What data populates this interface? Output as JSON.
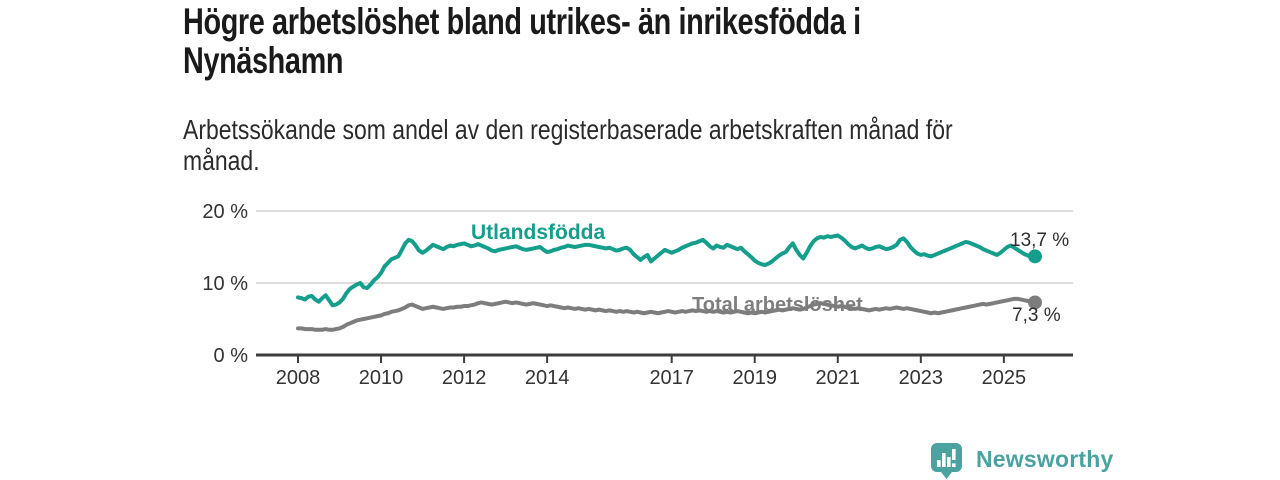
{
  "header": {
    "title_line1": "Högre arbetslöshet bland utrikes- än inrikesfödda i",
    "title_line2": "Nynäshamn",
    "subtitle_line1": "Arbetssökande som andel av den registerbaserade arbetskraften månad för",
    "subtitle_line2": "månad."
  },
  "footer": {
    "brand_name": "Newsworthy",
    "brand_color": "#4aa2a1",
    "brand_icon": "bar-chart-speech-bubble-icon"
  },
  "chart_data": {
    "type": "line",
    "title": "Högre arbetslöshet bland utrikes- än inrikesfödda i Nynäshamn",
    "subtitle": "Arbetssökande som andel av den registerbaserade arbetskraften månad för månad.",
    "frequency": "monthly",
    "x_start": "2008-01",
    "x_end": "2025-10",
    "ylim": [
      0,
      20
    ],
    "grid": "horizontal-only",
    "x_tick_years": [
      2008,
      2010,
      2012,
      2014,
      2017,
      2019,
      2021,
      2023,
      2025
    ],
    "y_ticks": [
      {
        "label": "0 %",
        "value": 0
      },
      {
        "label": "10 %",
        "value": 10
      },
      {
        "label": "20 %",
        "value": 20
      }
    ],
    "axis_color": "#3d3d3d",
    "gridline_color": "#dcdcdc",
    "tick_label_color": "#333333",
    "series": [
      {
        "id": "utlandsfodda",
        "name": "Utlandsfödda",
        "color": "#149e8b",
        "end_label": "13,7 %",
        "end_value": 13.7,
        "values": [
          8.0,
          7.9,
          7.7,
          8.1,
          8.2,
          7.7,
          7.4,
          7.9,
          8.3,
          7.6,
          6.9,
          7.0,
          7.3,
          7.8,
          8.6,
          9.2,
          9.5,
          9.8,
          10.0,
          9.4,
          9.3,
          9.8,
          10.4,
          10.8,
          11.4,
          12.3,
          12.8,
          13.3,
          13.5,
          13.7,
          14.6,
          15.5,
          16.0,
          15.8,
          15.2,
          14.5,
          14.2,
          14.5,
          14.9,
          15.3,
          15.1,
          14.9,
          14.7,
          15.0,
          15.2,
          15.1,
          15.3,
          15.4,
          15.5,
          15.3,
          15.1,
          15.2,
          15.4,
          15.2,
          15.0,
          14.8,
          14.5,
          14.4,
          14.6,
          14.7,
          14.8,
          14.9,
          15.0,
          15.1,
          14.9,
          14.7,
          14.6,
          14.7,
          14.8,
          14.9,
          15.0,
          14.6,
          14.3,
          14.4,
          14.6,
          14.7,
          14.9,
          15.0,
          15.2,
          15.1,
          15.0,
          15.1,
          15.2,
          15.3,
          15.3,
          15.2,
          15.1,
          15.0,
          14.9,
          14.8,
          14.9,
          14.7,
          14.5,
          14.6,
          14.8,
          14.9,
          14.6,
          14.0,
          13.6,
          13.2,
          13.6,
          13.9,
          13.0,
          13.4,
          13.8,
          14.2,
          14.6,
          14.4,
          14.2,
          14.4,
          14.6,
          14.9,
          15.1,
          15.3,
          15.5,
          15.6,
          15.8,
          16.0,
          15.6,
          15.1,
          14.8,
          15.2,
          15.0,
          14.9,
          15.3,
          15.1,
          14.9,
          14.7,
          14.9,
          14.4,
          14.0,
          13.6,
          13.1,
          12.8,
          12.6,
          12.5,
          12.7,
          13.0,
          13.4,
          13.8,
          14.1,
          14.3,
          15.0,
          15.5,
          14.6,
          13.9,
          13.4,
          14.2,
          15.1,
          15.8,
          16.2,
          16.4,
          16.3,
          16.5,
          16.4,
          16.5,
          16.6,
          16.3,
          15.9,
          15.4,
          15.0,
          14.8,
          15.0,
          15.2,
          14.9,
          14.7,
          14.8,
          15.0,
          15.1,
          14.9,
          14.7,
          14.8,
          15.0,
          15.3,
          16.0,
          16.2,
          15.7,
          15.0,
          14.5,
          14.1,
          13.9,
          14.0,
          13.8,
          13.7,
          13.9,
          14.1,
          14.3,
          14.5,
          14.7,
          14.9,
          15.1,
          15.3,
          15.5,
          15.7,
          15.6,
          15.4,
          15.2,
          15.0,
          14.7,
          14.5,
          14.3,
          14.1,
          13.9,
          14.2,
          14.6,
          15.0,
          15.2,
          14.9,
          14.6,
          14.3,
          14.0,
          13.8,
          13.9,
          13.7
        ]
      },
      {
        "id": "total",
        "name": "Total arbetslöshet",
        "color": "#7d7d7d",
        "end_label": "7,3 %",
        "end_value": 7.3,
        "values": [
          3.7,
          3.7,
          3.6,
          3.6,
          3.6,
          3.5,
          3.5,
          3.5,
          3.6,
          3.5,
          3.5,
          3.6,
          3.7,
          3.9,
          4.2,
          4.4,
          4.6,
          4.8,
          4.9,
          5.0,
          5.1,
          5.2,
          5.3,
          5.4,
          5.5,
          5.7,
          5.8,
          6.0,
          6.1,
          6.2,
          6.4,
          6.6,
          6.9,
          7.0,
          6.8,
          6.6,
          6.4,
          6.5,
          6.6,
          6.7,
          6.6,
          6.5,
          6.4,
          6.5,
          6.6,
          6.6,
          6.7,
          6.7,
          6.8,
          6.8,
          6.9,
          7.0,
          7.2,
          7.3,
          7.2,
          7.1,
          7.0,
          7.1,
          7.2,
          7.3,
          7.4,
          7.3,
          7.2,
          7.3,
          7.2,
          7.1,
          7.0,
          7.1,
          7.2,
          7.1,
          7.0,
          6.9,
          6.8,
          6.9,
          6.8,
          6.7,
          6.6,
          6.5,
          6.6,
          6.5,
          6.4,
          6.5,
          6.4,
          6.3,
          6.4,
          6.3,
          6.2,
          6.3,
          6.2,
          6.1,
          6.2,
          6.1,
          6.0,
          6.1,
          6.0,
          6.1,
          6.0,
          5.9,
          6.0,
          5.9,
          5.8,
          5.9,
          6.0,
          5.9,
          5.8,
          5.9,
          6.0,
          6.1,
          6.0,
          5.9,
          6.0,
          6.1,
          6.0,
          6.1,
          6.2,
          6.1,
          6.2,
          6.1,
          6.0,
          6.1,
          6.0,
          6.1,
          6.0,
          5.9,
          6.0,
          5.9,
          6.0,
          6.1,
          6.0,
          5.9,
          5.8,
          5.9,
          5.8,
          5.9,
          6.0,
          5.9,
          6.0,
          6.1,
          6.2,
          6.3,
          6.2,
          6.3,
          6.4,
          6.5,
          6.4,
          6.3,
          6.4,
          6.6,
          6.8,
          7.0,
          7.1,
          7.2,
          7.1,
          7.0,
          6.9,
          6.8,
          6.7,
          6.8,
          6.7,
          6.6,
          6.5,
          6.4,
          6.5,
          6.4,
          6.3,
          6.2,
          6.3,
          6.4,
          6.3,
          6.4,
          6.5,
          6.4,
          6.5,
          6.6,
          6.5,
          6.4,
          6.5,
          6.4,
          6.3,
          6.2,
          6.1,
          6.0,
          5.9,
          5.8,
          5.9,
          5.8,
          5.9,
          6.0,
          6.1,
          6.2,
          6.3,
          6.4,
          6.5,
          6.6,
          6.7,
          6.8,
          6.9,
          7.0,
          7.1,
          7.0,
          7.1,
          7.2,
          7.3,
          7.4,
          7.5,
          7.6,
          7.7,
          7.8,
          7.8,
          7.7,
          7.6,
          7.5,
          7.4,
          7.3
        ]
      }
    ]
  }
}
